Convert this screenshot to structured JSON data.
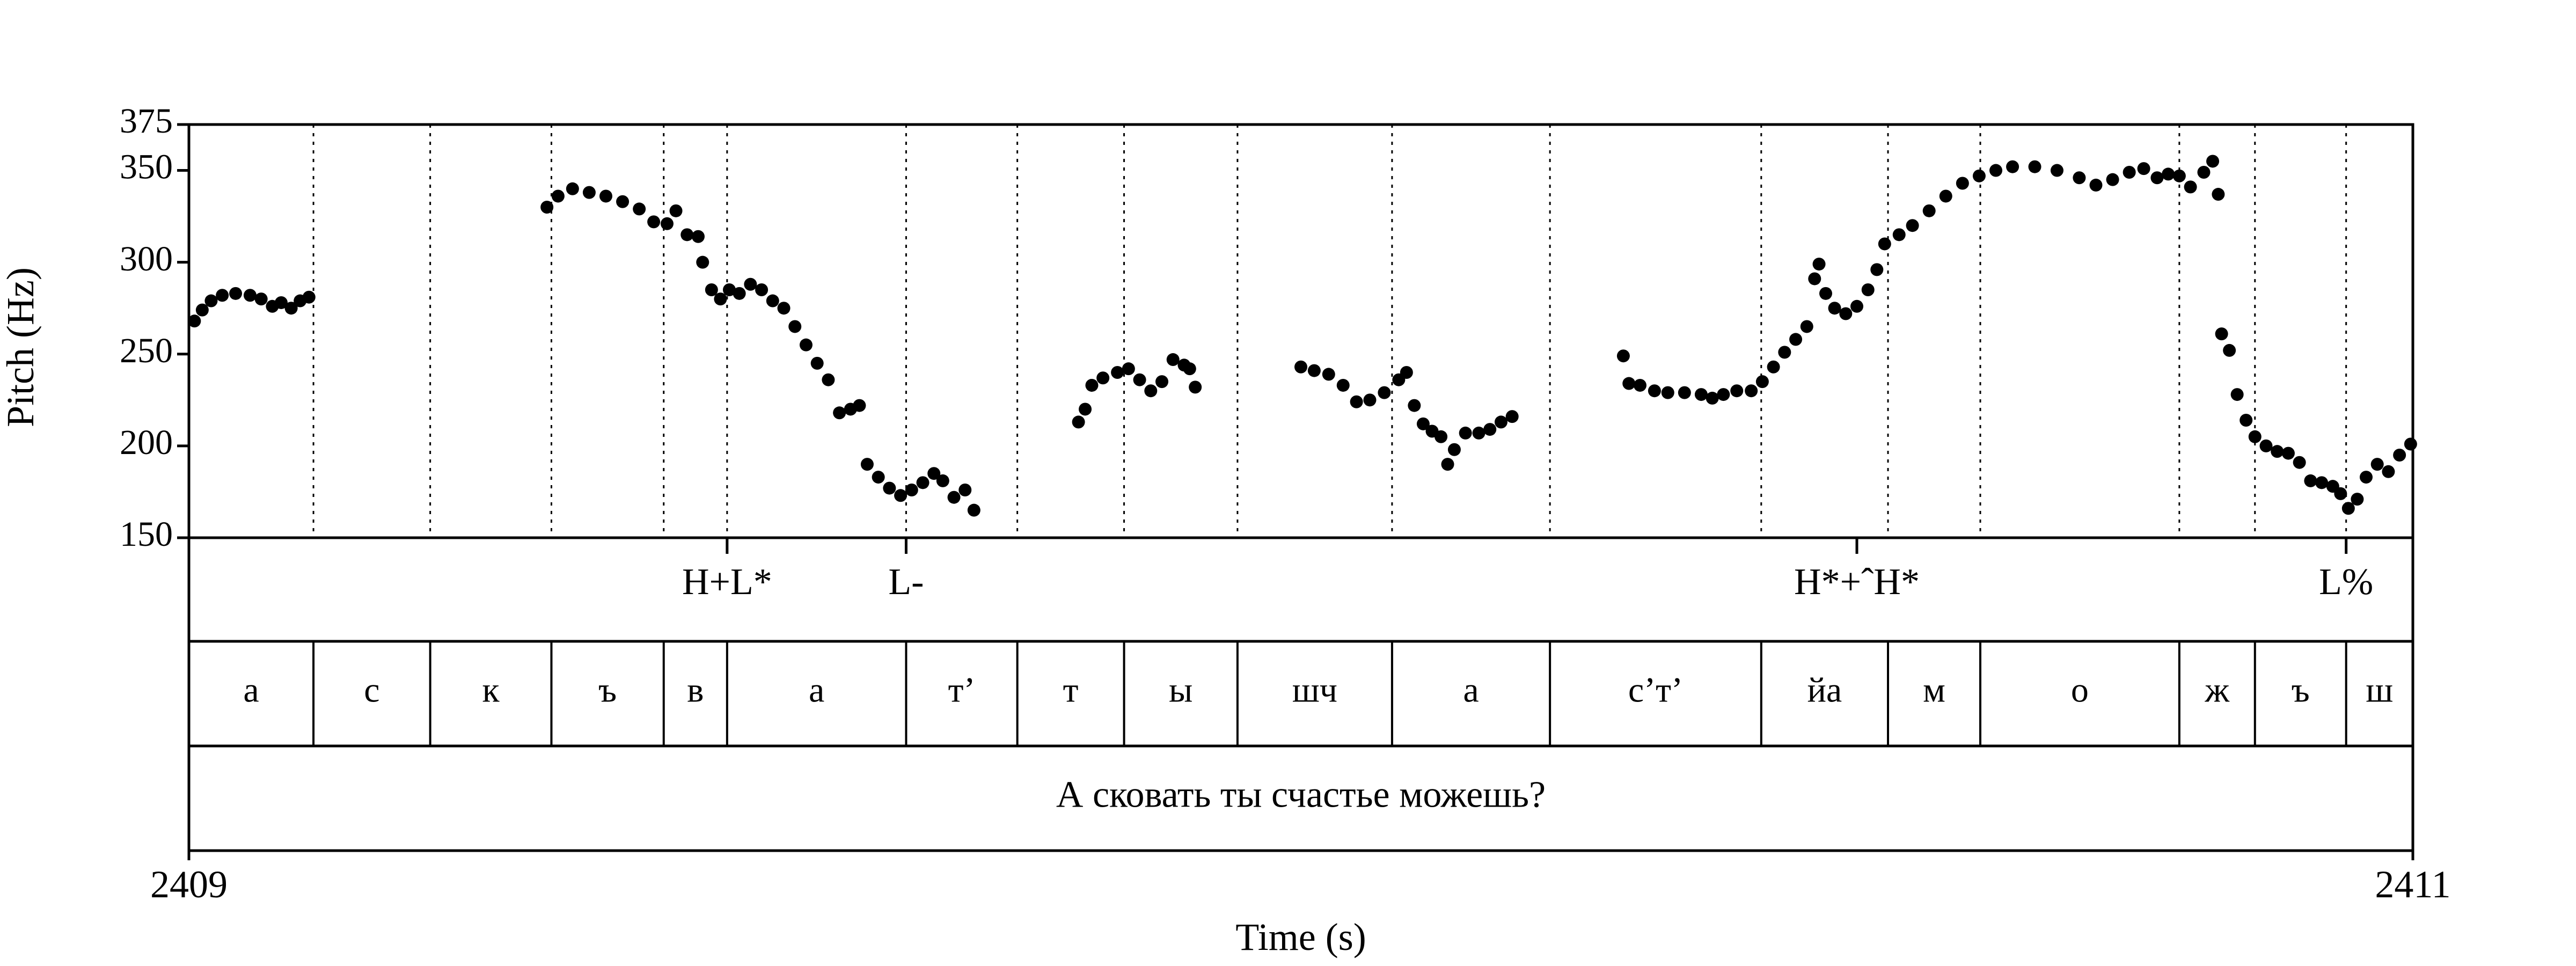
{
  "chart_data": {
    "type": "scatter",
    "ylabel": "Pitch (Hz)",
    "xlabel": "Time (s)",
    "xlim": [
      2409,
      2411
    ],
    "x_tick_labels": [
      "2409",
      "2411"
    ],
    "ylim": [
      150,
      375
    ],
    "y_ticks": [
      150,
      200,
      250,
      300,
      350,
      375
    ],
    "y_tick_labels": [
      "150",
      "200",
      "250",
      "300",
      "350",
      "375"
    ],
    "grid": "dotted vertical lines at segment boundaries",
    "series": [
      {
        "marker_color": "#000000",
        "points": [
          [
            2409.005,
            268
          ],
          [
            2409.012,
            274
          ],
          [
            2409.02,
            279
          ],
          [
            2409.03,
            282
          ],
          [
            2409.042,
            283
          ],
          [
            2409.055,
            282
          ],
          [
            2409.065,
            280
          ],
          [
            2409.075,
            276
          ],
          [
            2409.083,
            278
          ],
          [
            2409.092,
            275
          ],
          [
            2409.1,
            279
          ],
          [
            2409.108,
            281
          ],
          [
            2409.322,
            330
          ],
          [
            2409.332,
            336
          ],
          [
            2409.345,
            340
          ],
          [
            2409.36,
            338
          ],
          [
            2409.375,
            336
          ],
          [
            2409.39,
            333
          ],
          [
            2409.405,
            329
          ],
          [
            2409.418,
            322
          ],
          [
            2409.43,
            321
          ],
          [
            2409.438,
            328
          ],
          [
            2409.448,
            315
          ],
          [
            2409.458,
            314
          ],
          [
            2409.462,
            300
          ],
          [
            2409.47,
            285
          ],
          [
            2409.478,
            280
          ],
          [
            2409.486,
            285
          ],
          [
            2409.495,
            283
          ],
          [
            2409.505,
            288
          ],
          [
            2409.515,
            285
          ],
          [
            2409.525,
            279
          ],
          [
            2409.535,
            275
          ],
          [
            2409.545,
            265
          ],
          [
            2409.555,
            255
          ],
          [
            2409.565,
            245
          ],
          [
            2409.575,
            236
          ],
          [
            2409.585,
            218
          ],
          [
            2409.595,
            220
          ],
          [
            2409.603,
            222
          ],
          [
            2409.61,
            190
          ],
          [
            2409.62,
            183
          ],
          [
            2409.63,
            177
          ],
          [
            2409.64,
            173
          ],
          [
            2409.65,
            176
          ],
          [
            2409.66,
            180
          ],
          [
            2409.67,
            185
          ],
          [
            2409.678,
            181
          ],
          [
            2409.688,
            172
          ],
          [
            2409.698,
            176
          ],
          [
            2409.706,
            165
          ],
          [
            2409.8,
            213
          ],
          [
            2409.806,
            220
          ],
          [
            2409.812,
            233
          ],
          [
            2409.822,
            237
          ],
          [
            2409.835,
            240
          ],
          [
            2409.845,
            242
          ],
          [
            2409.855,
            236
          ],
          [
            2409.865,
            230
          ],
          [
            2409.875,
            235
          ],
          [
            2409.885,
            247
          ],
          [
            2409.895,
            244
          ],
          [
            2409.9,
            242
          ],
          [
            2409.905,
            232
          ],
          [
            2410.0,
            243
          ],
          [
            2410.012,
            241
          ],
          [
            2410.025,
            239
          ],
          [
            2410.038,
            233
          ],
          [
            2410.05,
            224
          ],
          [
            2410.062,
            225
          ],
          [
            2410.075,
            229
          ],
          [
            2410.088,
            236
          ],
          [
            2410.095,
            240
          ],
          [
            2410.102,
            222
          ],
          [
            2410.11,
            212
          ],
          [
            2410.118,
            208
          ],
          [
            2410.126,
            205
          ],
          [
            2410.132,
            190
          ],
          [
            2410.138,
            198
          ],
          [
            2410.148,
            207
          ],
          [
            2410.16,
            207
          ],
          [
            2410.17,
            209
          ],
          [
            2410.18,
            213
          ],
          [
            2410.19,
            216
          ],
          [
            2410.29,
            249
          ],
          [
            2410.295,
            234
          ],
          [
            2410.305,
            233
          ],
          [
            2410.318,
            230
          ],
          [
            2410.33,
            229
          ],
          [
            2410.345,
            229
          ],
          [
            2410.36,
            228
          ],
          [
            2410.37,
            226
          ],
          [
            2410.38,
            228
          ],
          [
            2410.392,
            230
          ],
          [
            2410.405,
            230
          ],
          [
            2410.415,
            235
          ],
          [
            2410.425,
            243
          ],
          [
            2410.435,
            251
          ],
          [
            2410.445,
            258
          ],
          [
            2410.455,
            265
          ],
          [
            2410.462,
            291
          ],
          [
            2410.466,
            299
          ],
          [
            2410.472,
            283
          ],
          [
            2410.48,
            275
          ],
          [
            2410.49,
            272
          ],
          [
            2410.5,
            276
          ],
          [
            2410.51,
            285
          ],
          [
            2410.518,
            296
          ],
          [
            2410.525,
            310
          ],
          [
            2410.538,
            315
          ],
          [
            2410.55,
            320
          ],
          [
            2410.565,
            328
          ],
          [
            2410.58,
            336
          ],
          [
            2410.595,
            343
          ],
          [
            2410.61,
            347
          ],
          [
            2410.625,
            350
          ],
          [
            2410.64,
            352
          ],
          [
            2410.66,
            352
          ],
          [
            2410.68,
            350
          ],
          [
            2410.7,
            346
          ],
          [
            2410.715,
            342
          ],
          [
            2410.73,
            345
          ],
          [
            2410.745,
            349
          ],
          [
            2410.758,
            351
          ],
          [
            2410.77,
            346
          ],
          [
            2410.78,
            348
          ],
          [
            2410.79,
            347
          ],
          [
            2410.8,
            341
          ],
          [
            2410.812,
            349
          ],
          [
            2410.82,
            355
          ],
          [
            2410.825,
            337
          ],
          [
            2410.828,
            261
          ],
          [
            2410.835,
            252
          ],
          [
            2410.842,
            228
          ],
          [
            2410.85,
            214
          ],
          [
            2410.858,
            205
          ],
          [
            2410.868,
            200
          ],
          [
            2410.878,
            197
          ],
          [
            2410.888,
            196
          ],
          [
            2410.898,
            191
          ],
          [
            2410.908,
            181
          ],
          [
            2410.918,
            180
          ],
          [
            2410.928,
            178
          ],
          [
            2410.935,
            174
          ],
          [
            2410.942,
            166
          ],
          [
            2410.95,
            171
          ],
          [
            2410.958,
            183
          ],
          [
            2410.968,
            190
          ],
          [
            2410.978,
            186
          ],
          [
            2410.988,
            195
          ],
          [
            2410.998,
            201
          ]
        ]
      }
    ]
  },
  "tones": [
    {
      "label": "H+L*",
      "t": 2409.484
    },
    {
      "label": "L-",
      "t": 2409.645
    },
    {
      "label": "H*+ˆH*",
      "t": 2410.5
    },
    {
      "label": "L%",
      "t": 2410.94
    }
  ],
  "segments": [
    {
      "label": "а",
      "start": 2409.0,
      "end": 2409.112
    },
    {
      "label": "с",
      "start": 2409.112,
      "end": 2409.217
    },
    {
      "label": "к",
      "start": 2409.217,
      "end": 2409.326
    },
    {
      "label": "ъ",
      "start": 2409.326,
      "end": 2409.427
    },
    {
      "label": "в",
      "start": 2409.427,
      "end": 2409.484
    },
    {
      "label": "а",
      "start": 2409.484,
      "end": 2409.645
    },
    {
      "label": "т’",
      "start": 2409.645,
      "end": 2409.745
    },
    {
      "label": "т",
      "start": 2409.745,
      "end": 2409.841
    },
    {
      "label": "ы",
      "start": 2409.841,
      "end": 2409.943
    },
    {
      "label": "шч",
      "start": 2409.943,
      "end": 2410.082
    },
    {
      "label": "а",
      "start": 2410.082,
      "end": 2410.224
    },
    {
      "label": "с’т’",
      "start": 2410.224,
      "end": 2410.414
    },
    {
      "label": "йа",
      "start": 2410.414,
      "end": 2410.528
    },
    {
      "label": "м",
      "start": 2410.528,
      "end": 2410.611
    },
    {
      "label": "о",
      "start": 2410.611,
      "end": 2410.79
    },
    {
      "label": "ж",
      "start": 2410.79,
      "end": 2410.858
    },
    {
      "label": "ъ",
      "start": 2410.858,
      "end": 2410.94
    },
    {
      "label": "ш",
      "start": 2410.94,
      "end": 2411.0
    }
  ],
  "sentence": "А сковать ты счастье можешь?"
}
